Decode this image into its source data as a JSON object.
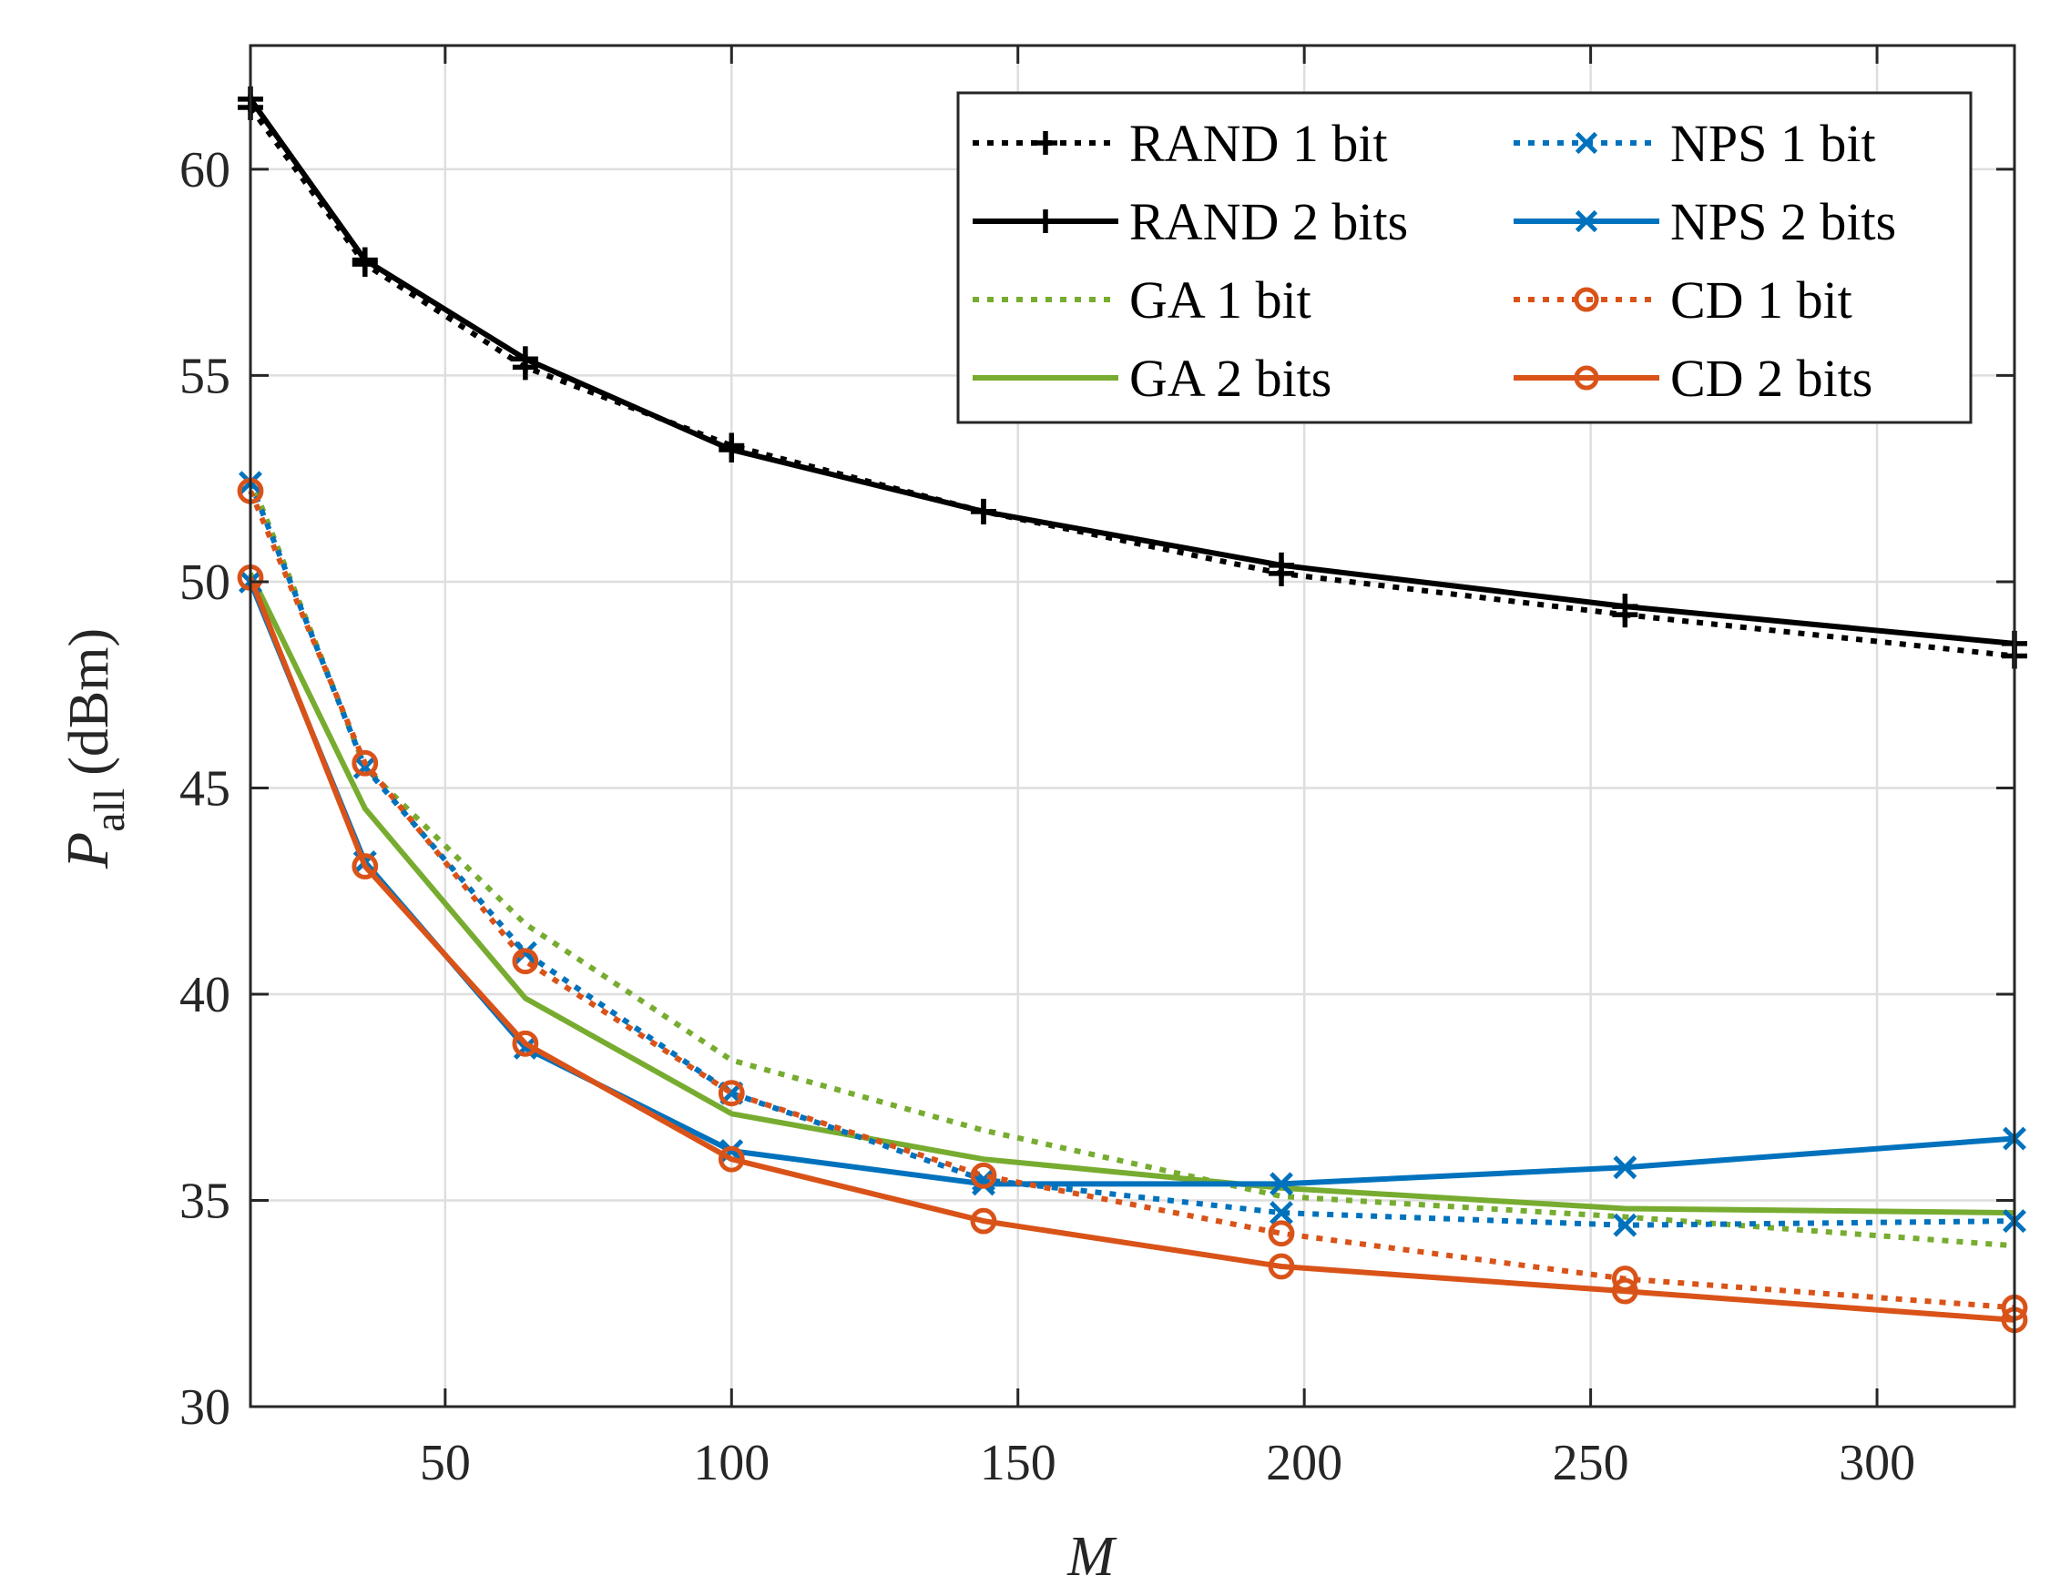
{
  "chart_data": {
    "type": "line",
    "title": "",
    "xlabel": "M",
    "ylabel_main": "P",
    "ylabel_sub": "all",
    "ylabel_unit": "(dBm)",
    "xlim": [
      16,
      324
    ],
    "ylim": [
      30,
      63
    ],
    "xticks": [
      50,
      100,
      150,
      200,
      250,
      300
    ],
    "yticks": [
      30,
      35,
      40,
      45,
      50,
      55,
      60
    ],
    "grid": true,
    "legend_position": "top-right",
    "x": [
      16,
      36,
      64,
      100,
      144,
      196,
      256,
      324
    ],
    "series": [
      {
        "name": "RAND 1 bit",
        "color": "#000000",
        "style": "dotted",
        "marker": "plus",
        "values": [
          61.5,
          57.7,
          55.2,
          53.3,
          51.7,
          50.2,
          49.2,
          48.2
        ]
      },
      {
        "name": "RAND 2 bits",
        "color": "#000000",
        "style": "solid",
        "marker": "plus",
        "values": [
          61.7,
          57.8,
          55.4,
          53.2,
          51.7,
          50.4,
          49.4,
          48.5
        ]
      },
      {
        "name": "GA 1 bit",
        "color": "#77AC30",
        "style": "dotted",
        "marker": "none",
        "values": [
          52.5,
          45.5,
          41.7,
          38.4,
          36.7,
          35.1,
          34.6,
          33.9
        ]
      },
      {
        "name": "GA 2 bits",
        "color": "#77AC30",
        "style": "solid",
        "marker": "none",
        "values": [
          50.2,
          44.5,
          39.9,
          37.1,
          36.0,
          35.3,
          34.8,
          34.7
        ]
      },
      {
        "name": "NPS 1 bit",
        "color": "#0072BD",
        "style": "dotted",
        "marker": "x",
        "values": [
          52.4,
          45.5,
          41.0,
          37.6,
          35.5,
          34.7,
          34.4,
          34.5
        ]
      },
      {
        "name": "NPS 2 bits",
        "color": "#0072BD",
        "style": "solid",
        "marker": "x",
        "values": [
          50.0,
          43.2,
          38.7,
          36.2,
          35.4,
          35.4,
          35.8,
          36.5
        ]
      },
      {
        "name": "CD 1 bit",
        "color": "#D95319",
        "style": "dotted",
        "marker": "circle",
        "values": [
          52.2,
          45.6,
          40.8,
          37.6,
          35.6,
          34.2,
          33.1,
          32.4
        ]
      },
      {
        "name": "CD 2 bits",
        "color": "#D95319",
        "style": "solid",
        "marker": "circle",
        "values": [
          50.1,
          43.1,
          38.8,
          36.0,
          34.5,
          33.4,
          32.8,
          32.1
        ]
      }
    ]
  }
}
